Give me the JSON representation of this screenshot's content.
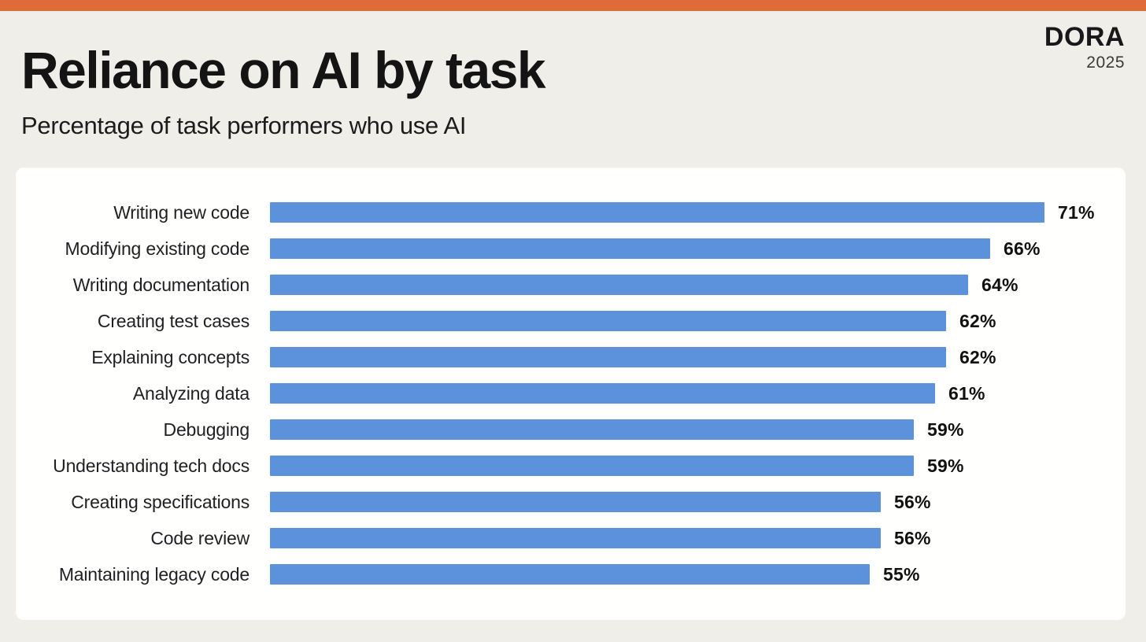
{
  "page": {
    "title": "Reliance on AI by task",
    "subtitle": "Percentage of task performers who use AI",
    "logo": {
      "brand": "DORA",
      "year": "2025"
    }
  },
  "colors": {
    "top_strip": "#df6a3a",
    "background": "#efeee9",
    "card_background": "#fffffe",
    "bar_blue": "#5b92db",
    "title_text": "#141414",
    "label_text": "#202124",
    "value_text": "#111111"
  },
  "chart_data": {
    "type": "bar",
    "orientation": "horizontal",
    "title": "Reliance on AI by task",
    "subtitle": "Percentage of task performers who use AI",
    "categories": [
      "Writing new code",
      "Modifying existing code",
      "Writing documentation",
      "Creating test cases",
      "Explaining concepts",
      "Analyzing data",
      "Debugging",
      "Understanding tech docs",
      "Creating specifications",
      "Code review",
      "Maintaining legacy code"
    ],
    "values": [
      71,
      66,
      64,
      62,
      62,
      61,
      59,
      59,
      56,
      56,
      55
    ],
    "value_suffix": "%",
    "value_label_position": "end-of-bar",
    "xlim": [
      0,
      100
    ],
    "grid": false,
    "legend": false,
    "bar_color": "#5b92db"
  }
}
